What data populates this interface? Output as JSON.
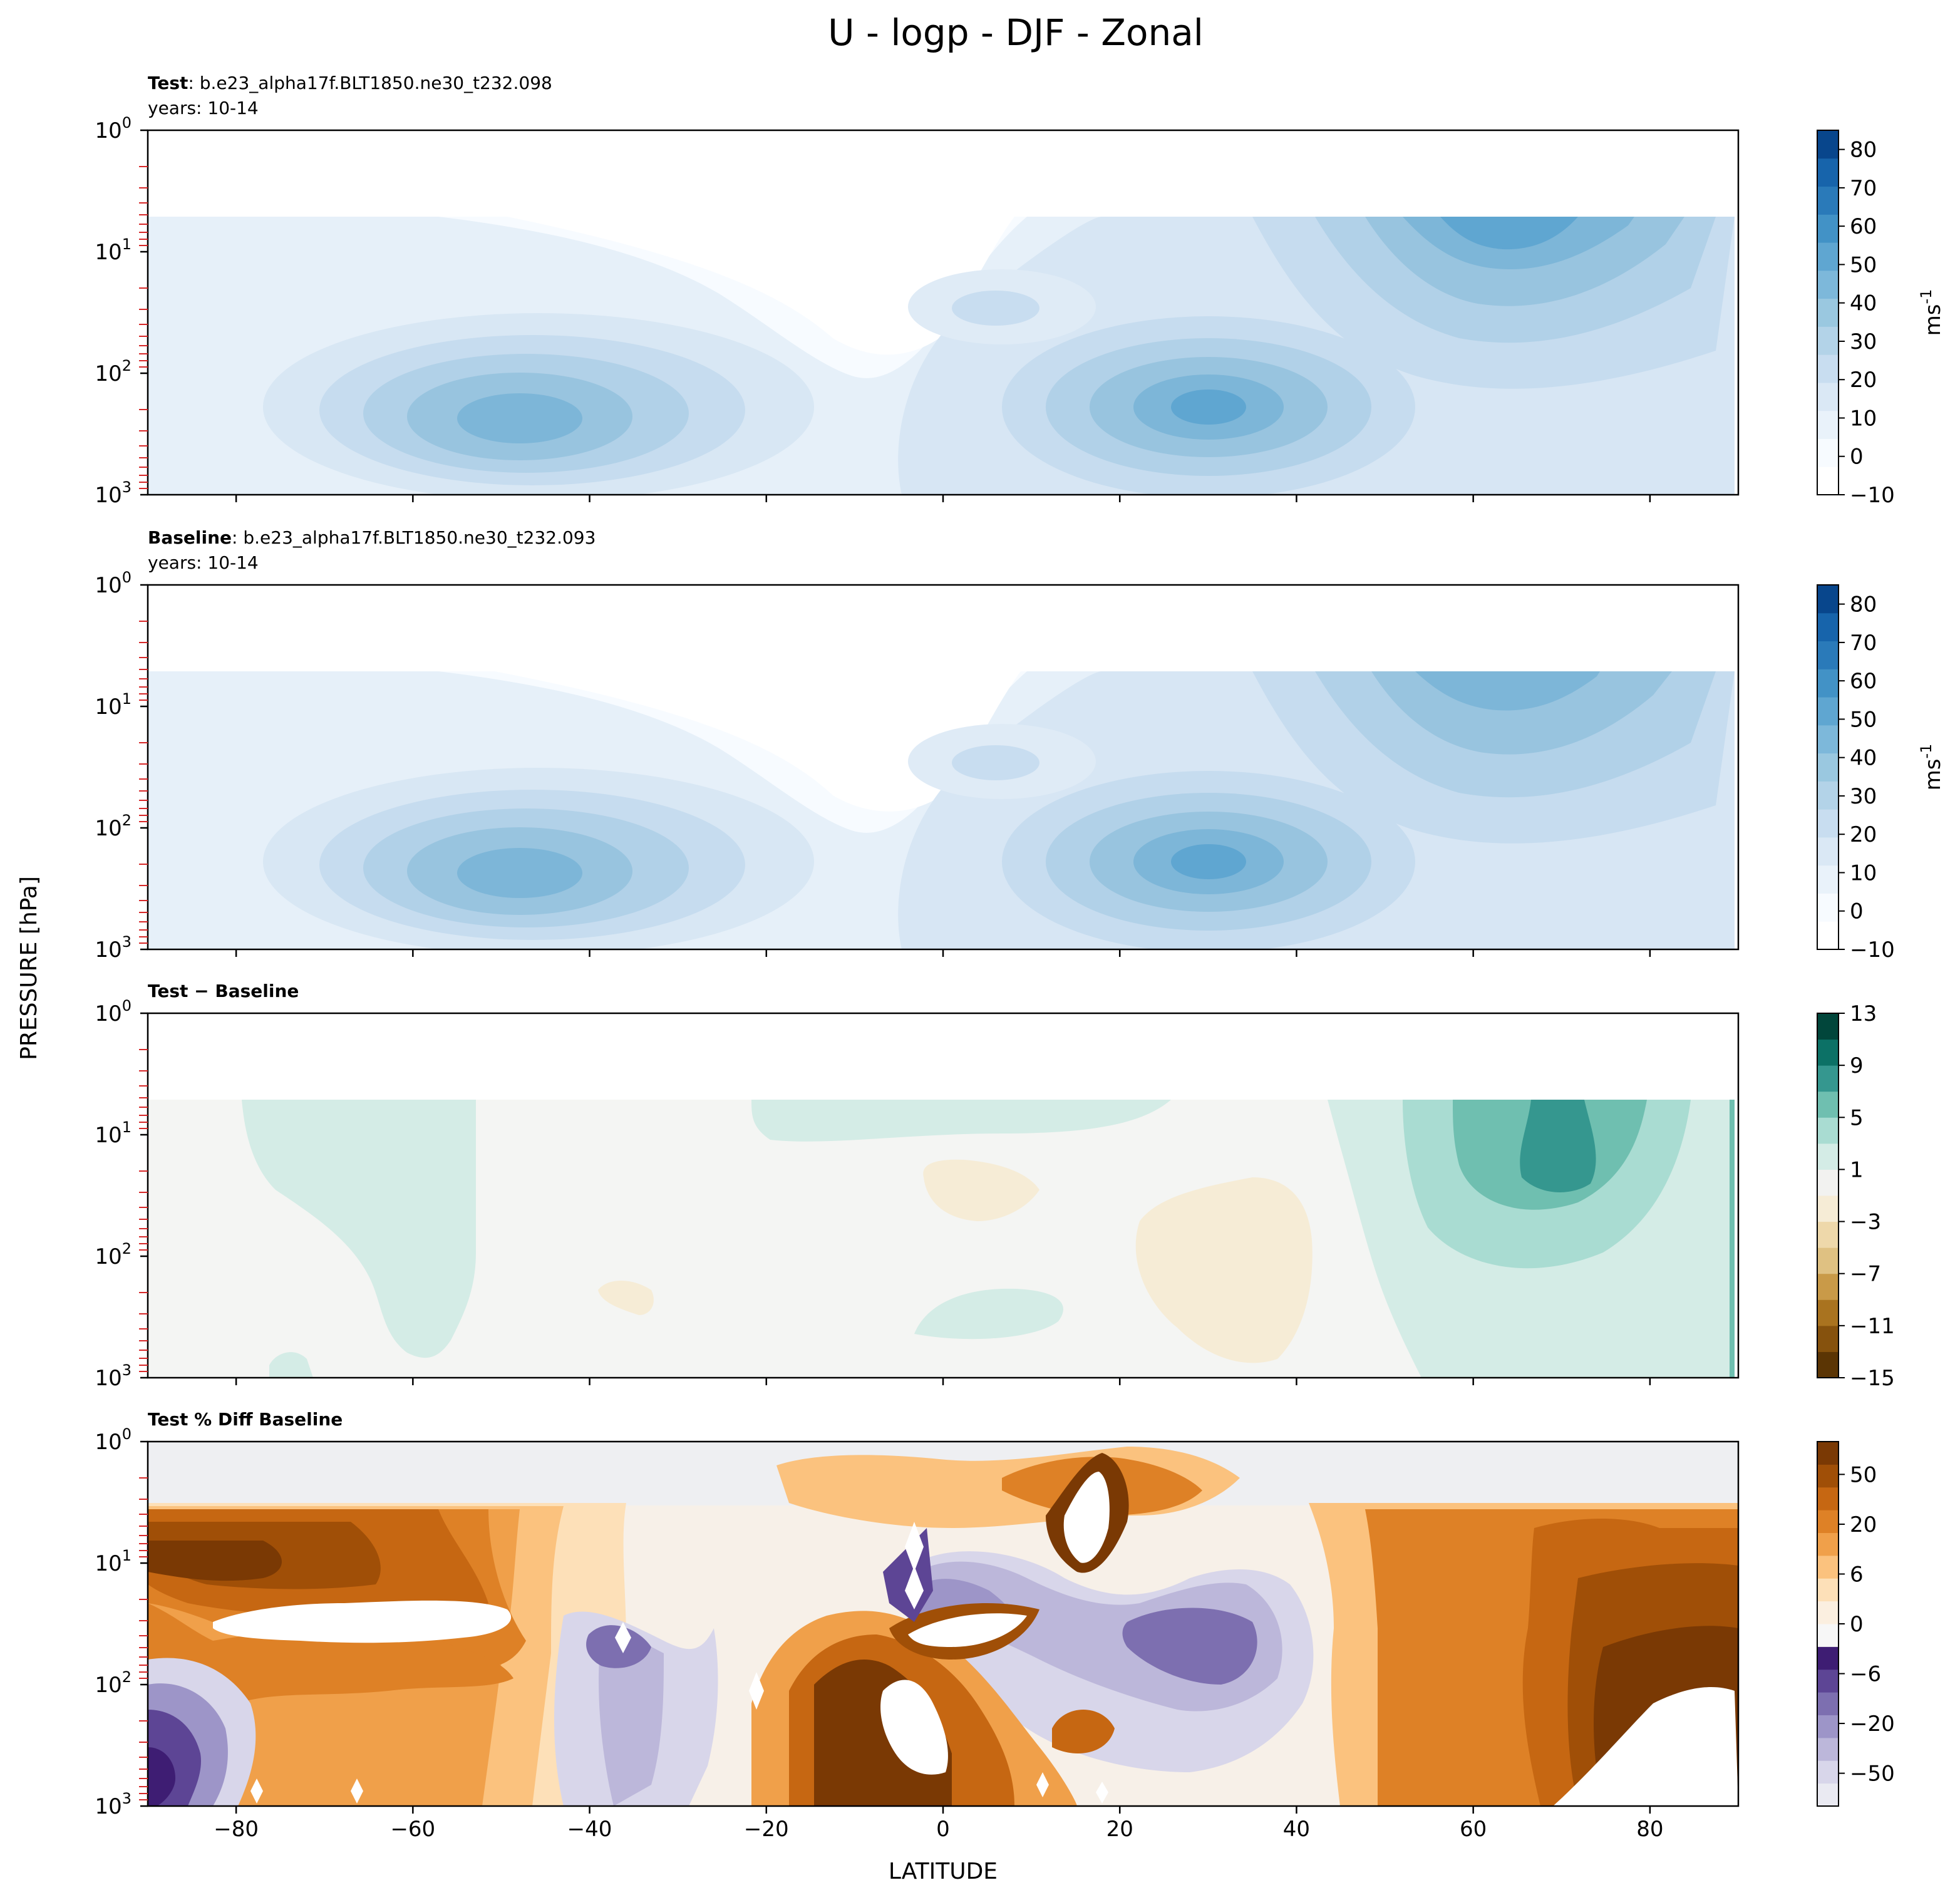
{
  "figure": {
    "title": "U - logp - DJF - Zonal",
    "xlabel": "LATITUDE",
    "ylabel": "PRESSURE [hPa]"
  },
  "chart_data": [
    {
      "type": "contour",
      "panel_label_bold": "Test",
      "panel_label_rest": ": b.e23_alpha17f.BLT1850.ne30_t232.098",
      "subtitle": "years: 10-14",
      "x_ticks": [
        "−80",
        "−60",
        "−40",
        "−20",
        "0",
        "20",
        "40",
        "60",
        "80"
      ],
      "y_ticks": [
        "10^0",
        "10^1",
        "10^2",
        "10^3"
      ],
      "xlim": [
        -90,
        90
      ],
      "ylim": [
        1000,
        1
      ],
      "y_scale": "log",
      "colormap": "Blues",
      "colorbar": {
        "label": "ms^-1",
        "ticks": [
          "80",
          "70",
          "60",
          "50",
          "40",
          "30",
          "20",
          "10",
          "0",
          "−10"
        ],
        "range": [
          -10,
          85
        ]
      },
      "features": [
        {
          "kind": "jet",
          "lat": -47,
          "pressure_hPa": 250,
          "max": 35
        },
        {
          "kind": "jet",
          "lat": 31,
          "pressure_hPa": 200,
          "max": 45
        },
        {
          "kind": "polar-night-jet",
          "lat": 66,
          "pressure_hPa": 7,
          "max": 45
        }
      ]
    },
    {
      "type": "contour",
      "panel_label_bold": "Baseline",
      "panel_label_rest": ": b.e23_alpha17f.BLT1850.ne30_t232.093",
      "subtitle": "years: 10-14",
      "x_ticks": [
        "−80",
        "−60",
        "−40",
        "−20",
        "0",
        "20",
        "40",
        "60",
        "80"
      ],
      "y_ticks": [
        "10^0",
        "10^1",
        "10^2",
        "10^3"
      ],
      "xlim": [
        -90,
        90
      ],
      "ylim": [
        1000,
        1
      ],
      "y_scale": "log",
      "colormap": "Blues",
      "colorbar": {
        "label": "ms^-1",
        "ticks": [
          "80",
          "70",
          "60",
          "50",
          "40",
          "30",
          "20",
          "10",
          "0",
          "−10"
        ],
        "range": [
          -10,
          85
        ]
      },
      "features": [
        {
          "kind": "jet",
          "lat": -47,
          "pressure_hPa": 250,
          "max": 35
        },
        {
          "kind": "jet",
          "lat": 30,
          "pressure_hPa": 200,
          "max": 45
        },
        {
          "kind": "polar-night-jet",
          "lat": 66,
          "pressure_hPa": 7,
          "max": 40
        }
      ]
    },
    {
      "type": "contour",
      "panel_label_bold": "Test − Baseline",
      "panel_label_rest": "",
      "subtitle": "",
      "x_ticks": [
        "−80",
        "−60",
        "−40",
        "−20",
        "0",
        "20",
        "40",
        "60",
        "80"
      ],
      "y_ticks": [
        "10^0",
        "10^1",
        "10^2",
        "10^3"
      ],
      "xlim": [
        -90,
        90
      ],
      "ylim": [
        1000,
        1
      ],
      "y_scale": "log",
      "colormap": "BrBG",
      "colorbar": {
        "label": "",
        "ticks": [
          "13",
          "9",
          "5",
          "1",
          "−3",
          "−7",
          "−11",
          "−15"
        ],
        "range": [
          -15,
          13
        ]
      },
      "features": [
        {
          "kind": "positive-max",
          "lat": 68,
          "pressure_hPa": 12,
          "value": 9
        }
      ]
    },
    {
      "type": "contour",
      "panel_label_bold": "Test % Diff Baseline",
      "panel_label_rest": "",
      "subtitle": "",
      "x_ticks": [
        "−80",
        "−60",
        "−40",
        "−20",
        "0",
        "20",
        "40",
        "60",
        "80"
      ],
      "y_ticks": [
        "10^0",
        "10^1",
        "10^2",
        "10^3"
      ],
      "xlim": [
        -90,
        90
      ],
      "ylim": [
        1000,
        1
      ],
      "y_scale": "log",
      "colormap": "PuOr_r",
      "colorbar": {
        "label": "",
        "ticks": [
          "50",
          "20",
          "6",
          "0",
          "−6",
          "−20",
          "−50"
        ],
        "range": [
          -100,
          100
        ]
      },
      "features": []
    }
  ],
  "colors": {
    "blues": [
      "#f7fbff",
      "#e9f2fa",
      "#dae8f5",
      "#c8ddf0",
      "#b3d3e8",
      "#9ac8e0",
      "#7db8da",
      "#5fa6d1",
      "#4292c6",
      "#2a7ab9",
      "#1764ab",
      "#08468c"
    ],
    "diff_neg": [
      "#f6ecd6",
      "#eed8aa",
      "#dfc182",
      "#c99a48",
      "#a9731f",
      "#86520d",
      "#5b3504"
    ],
    "diff_pos": [
      "#f2f2f0",
      "#d4ece6",
      "#a9dcd2",
      "#6fbfb0",
      "#35978f",
      "#0c7166",
      "#01463b"
    ],
    "pct_pos": [
      "#fbefe0",
      "#fde0b8",
      "#fbc27e",
      "#f0a04a",
      "#de8126",
      "#c66712",
      "#a04f07",
      "#7a3904"
    ],
    "pct_neg": [
      "#eaeaf2",
      "#d8d6ea",
      "#bcb7da",
      "#9d95c8",
      "#7d6fb0",
      "#5d4595",
      "#3e1d73"
    ]
  }
}
